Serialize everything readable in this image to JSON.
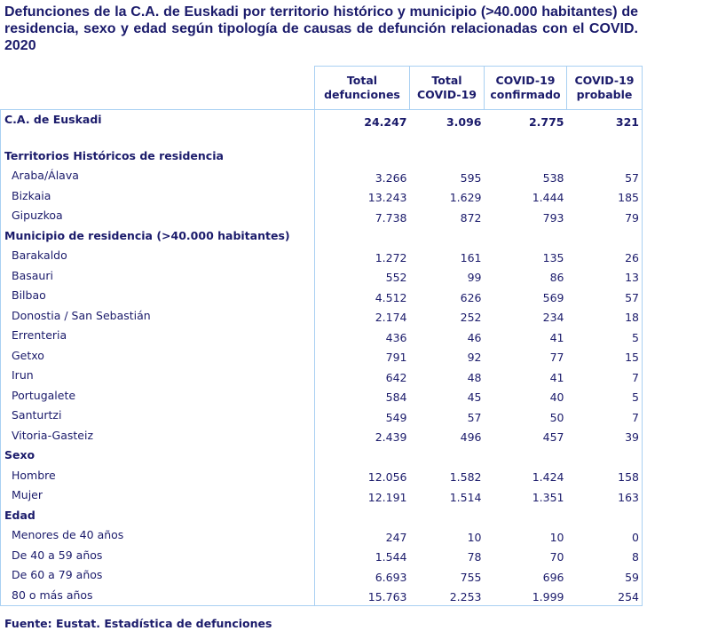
{
  "title": "Defunciones de la C.A. de Euskadi por territorio histórico y municipio (>40.000 habitantes) de residencia,  sexo y edad según tipología de causas de defunción relacionadas con el COVID. 2020",
  "columns": [
    [
      "Total",
      "defunciones"
    ],
    [
      "Total",
      "COVID-19"
    ],
    [
      "COVID-19",
      "confirmado"
    ],
    [
      "COVID-19",
      "probable"
    ]
  ],
  "rows": [
    {
      "label": "C.A. de Euskadi",
      "type": "total",
      "values": [
        "24.247",
        "3.096",
        "2.775",
        "321"
      ]
    },
    {
      "label": "",
      "type": "spacer",
      "values": []
    },
    {
      "label": "Territorios Históricos de residencia",
      "type": "section",
      "values": []
    },
    {
      "label": "Araba/Álava",
      "type": "sub",
      "values": [
        "3.266",
        "595",
        "538",
        "57"
      ]
    },
    {
      "label": "Bizkaia",
      "type": "sub",
      "values": [
        "13.243",
        "1.629",
        "1.444",
        "185"
      ]
    },
    {
      "label": "Gipuzkoa",
      "type": "sub",
      "values": [
        "7.738",
        "872",
        "793",
        "79"
      ]
    },
    {
      "label": "Municipio de residencia (>40.000 habitantes)",
      "type": "section",
      "values": []
    },
    {
      "label": "Barakaldo",
      "type": "sub",
      "values": [
        "1.272",
        "161",
        "135",
        "26"
      ]
    },
    {
      "label": "Basauri",
      "type": "sub",
      "values": [
        "552",
        "99",
        "86",
        "13"
      ]
    },
    {
      "label": "Bilbao",
      "type": "sub",
      "values": [
        "4.512",
        "626",
        "569",
        "57"
      ]
    },
    {
      "label": "Donostia / San Sebastián",
      "type": "sub",
      "values": [
        "2.174",
        "252",
        "234",
        "18"
      ]
    },
    {
      "label": "Errenteria",
      "type": "sub",
      "values": [
        "436",
        "46",
        "41",
        "5"
      ]
    },
    {
      "label": "Getxo",
      "type": "sub",
      "values": [
        "791",
        "92",
        "77",
        "15"
      ]
    },
    {
      "label": "Irun",
      "type": "sub",
      "values": [
        "642",
        "48",
        "41",
        "7"
      ]
    },
    {
      "label": "Portugalete",
      "type": "sub",
      "values": [
        "584",
        "45",
        "40",
        "5"
      ]
    },
    {
      "label": "Santurtzi",
      "type": "sub",
      "values": [
        "549",
        "57",
        "50",
        "7"
      ]
    },
    {
      "label": "Vitoria-Gasteiz",
      "type": "sub",
      "values": [
        "2.439",
        "496",
        "457",
        "39"
      ]
    },
    {
      "label": "Sexo",
      "type": "section",
      "values": []
    },
    {
      "label": "Hombre",
      "type": "sub",
      "values": [
        "12.056",
        "1.582",
        "1.424",
        "158"
      ]
    },
    {
      "label": "Mujer",
      "type": "sub",
      "values": [
        "12.191",
        "1.514",
        "1.351",
        "163"
      ]
    },
    {
      "label": "Edad",
      "type": "section",
      "values": []
    },
    {
      "label": "Menores de 40 años",
      "type": "sub",
      "values": [
        "247",
        "10",
        "10",
        "0"
      ]
    },
    {
      "label": "De 40 a 59 años",
      "type": "sub",
      "values": [
        "1.544",
        "78",
        "70",
        "8"
      ]
    },
    {
      "label": "De 60 a 79 años",
      "type": "sub",
      "values": [
        "6.693",
        "755",
        "696",
        "59"
      ]
    },
    {
      "label": "80 o más años",
      "type": "sub",
      "values": [
        "15.763",
        "2.253",
        "1.999",
        "254"
      ]
    }
  ],
  "footer": "Fuente: Eustat. Estadística de defunciones"
}
